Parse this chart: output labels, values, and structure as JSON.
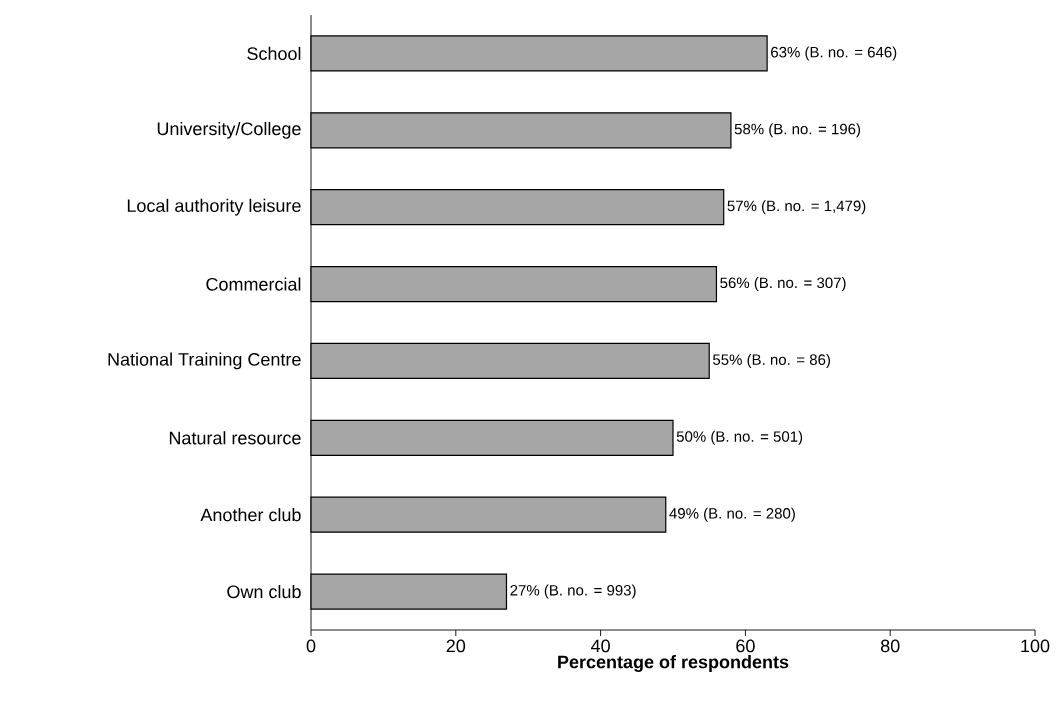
{
  "chart_data": {
    "type": "bar",
    "orientation": "horizontal",
    "xlabel": "Percentage of respondents",
    "categories": [
      "School",
      "University/College",
      "Local authority leisure",
      "Commercial",
      "National Training Centre",
      "Natural resource",
      "Another club",
      "Own club"
    ],
    "values": [
      63,
      58,
      57,
      56,
      55,
      50,
      49,
      27
    ],
    "value_labels": [
      "63%  (B.  no. = 646)",
      "58% (B. no. = 196)",
      "57% (B. no. = 1,479)",
      "56% (B. no. = 307)",
      "55% (B. no. = 86)",
      "50% (B. no. = 501)",
      "49% (B. no. = 280)",
      "27% (B. no. = 993)"
    ],
    "color": "#a6a6a6",
    "xlim": [
      0,
      100
    ],
    "xticks": [
      0,
      20,
      40,
      60,
      80,
      100
    ]
  }
}
